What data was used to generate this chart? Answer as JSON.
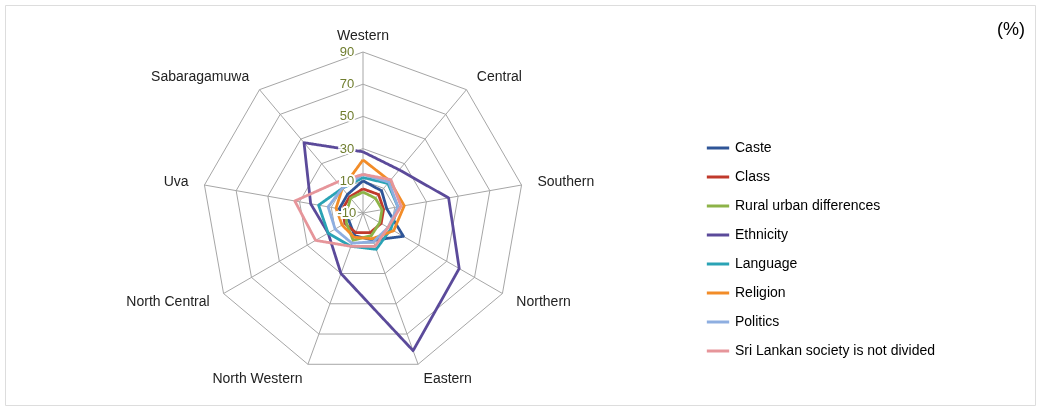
{
  "chart_data": {
    "type": "radar",
    "categories": [
      "Western",
      "Central",
      "Southern",
      "Northern",
      "Eastern",
      "North Western",
      "North Central",
      "Uva",
      "Sabaragamuwa"
    ],
    "series": [
      {
        "name": "Caste",
        "color": "#2f5597",
        "values": [
          10,
          8,
          5,
          19,
          8,
          5,
          0,
          5,
          5
        ]
      },
      {
        "name": "Class",
        "color": "#c0392b",
        "values": [
          5,
          5,
          3,
          3,
          3,
          3,
          3,
          3,
          3
        ]
      },
      {
        "name": "Rural urban differences",
        "color": "#8db348",
        "values": [
          3,
          2,
          2,
          2,
          5,
          8,
          2,
          0,
          2
        ]
      },
      {
        "name": "Ethnicity",
        "color": "#5b4a9a",
        "values": [
          28,
          25,
          44,
          59,
          81,
          30,
          15,
          23,
          47
        ]
      },
      {
        "name": "Language",
        "color": "#2aa3b5",
        "values": [
          12,
          14,
          12,
          10,
          14,
          12,
          15,
          18,
          10
        ]
      },
      {
        "name": "Religion",
        "color": "#f28c28",
        "values": [
          23,
          16,
          16,
          12,
          7,
          6,
          5,
          7,
          10
        ]
      },
      {
        "name": "Politics",
        "color": "#8eaee0",
        "values": [
          14,
          15,
          12,
          8,
          9,
          10,
          10,
          12,
          10
        ]
      },
      {
        "name": "Sri Lankan society is not divided",
        "color": "#e6959a",
        "values": [
          14,
          17,
          14,
          8,
          12,
          12,
          24,
          33,
          15
        ]
      }
    ],
    "ylim": [
      -10,
      90
    ],
    "yticks": [
      -10,
      10,
      30,
      50,
      70,
      90
    ],
    "grid": true,
    "legend": "right",
    "marker": "none",
    "line_style": "solid",
    "annotations": [
      "(%)"
    ]
  }
}
